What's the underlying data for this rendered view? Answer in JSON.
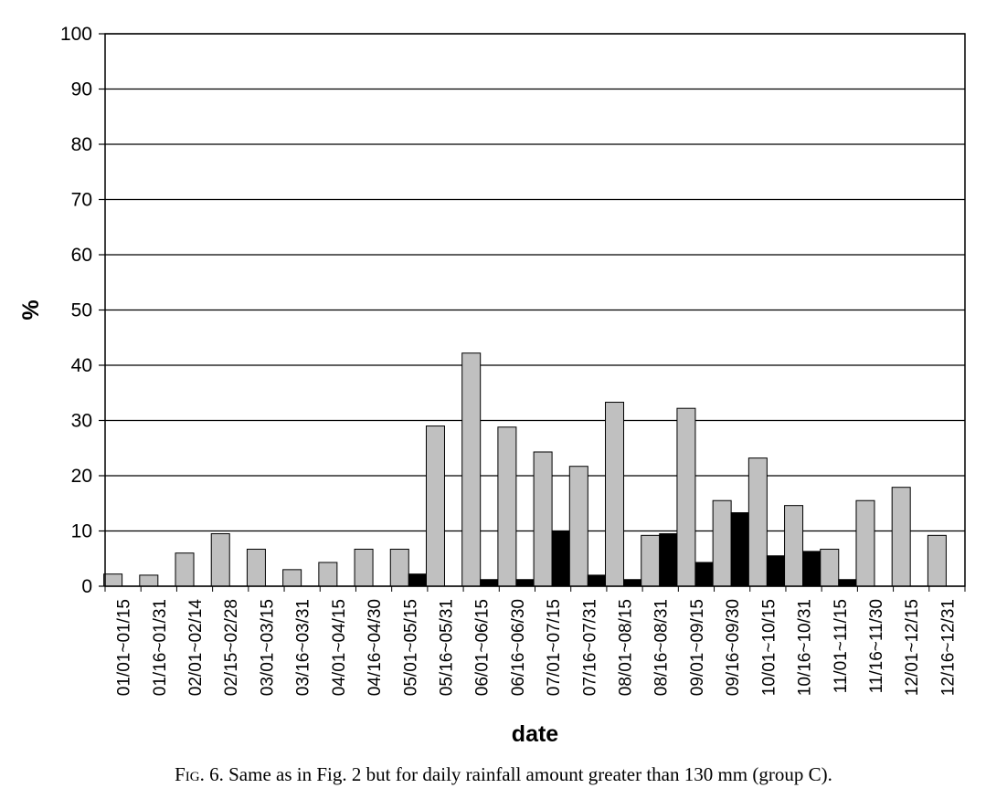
{
  "chart_data": {
    "type": "bar",
    "title": "",
    "xlabel": "date",
    "ylabel": "%",
    "ylim": [
      0,
      100
    ],
    "yticks": [
      0,
      10,
      20,
      30,
      40,
      50,
      60,
      70,
      80,
      90,
      100
    ],
    "grid": "horizontal",
    "categories": [
      "01/01~01/15",
      "01/16~01/31",
      "02/01~02/14",
      "02/15~02/28",
      "03/01~03/15",
      "03/16~03/31",
      "04/01~04/15",
      "04/16~04/30",
      "05/01~05/15",
      "05/16~05/31",
      "06/01~06/15",
      "06/16~06/30",
      "07/01~07/15",
      "07/16~07/31",
      "08/01~08/15",
      "08/16~08/31",
      "09/01~09/15",
      "09/16~09/30",
      "10/01~10/15",
      "10/16~10/31",
      "11/01~11/15",
      "11/16~11/30",
      "12/01~12/15",
      "12/16~12/31"
    ],
    "series": [
      {
        "color": "#c0c0c0",
        "values": [
          2.2,
          2.0,
          6.0,
          9.5,
          6.7,
          3.0,
          4.3,
          6.7,
          6.7,
          29.0,
          42.2,
          28.8,
          24.3,
          21.7,
          33.3,
          9.2,
          32.2,
          15.5,
          23.2,
          14.6,
          6.7,
          15.5,
          17.9,
          9.2
        ]
      },
      {
        "color": "#000000",
        "values": [
          0,
          0,
          0,
          0,
          0,
          0,
          0,
          0,
          2.2,
          0,
          1.2,
          1.2,
          10.0,
          2.0,
          1.2,
          9.5,
          4.3,
          13.3,
          5.5,
          6.3,
          1.2,
          0,
          0,
          0
        ]
      }
    ]
  },
  "caption": {
    "label": "Fig. 6.",
    "text": "Same as in Fig. 2 but for daily rainfall amount greater than 130 mm (group C)."
  }
}
